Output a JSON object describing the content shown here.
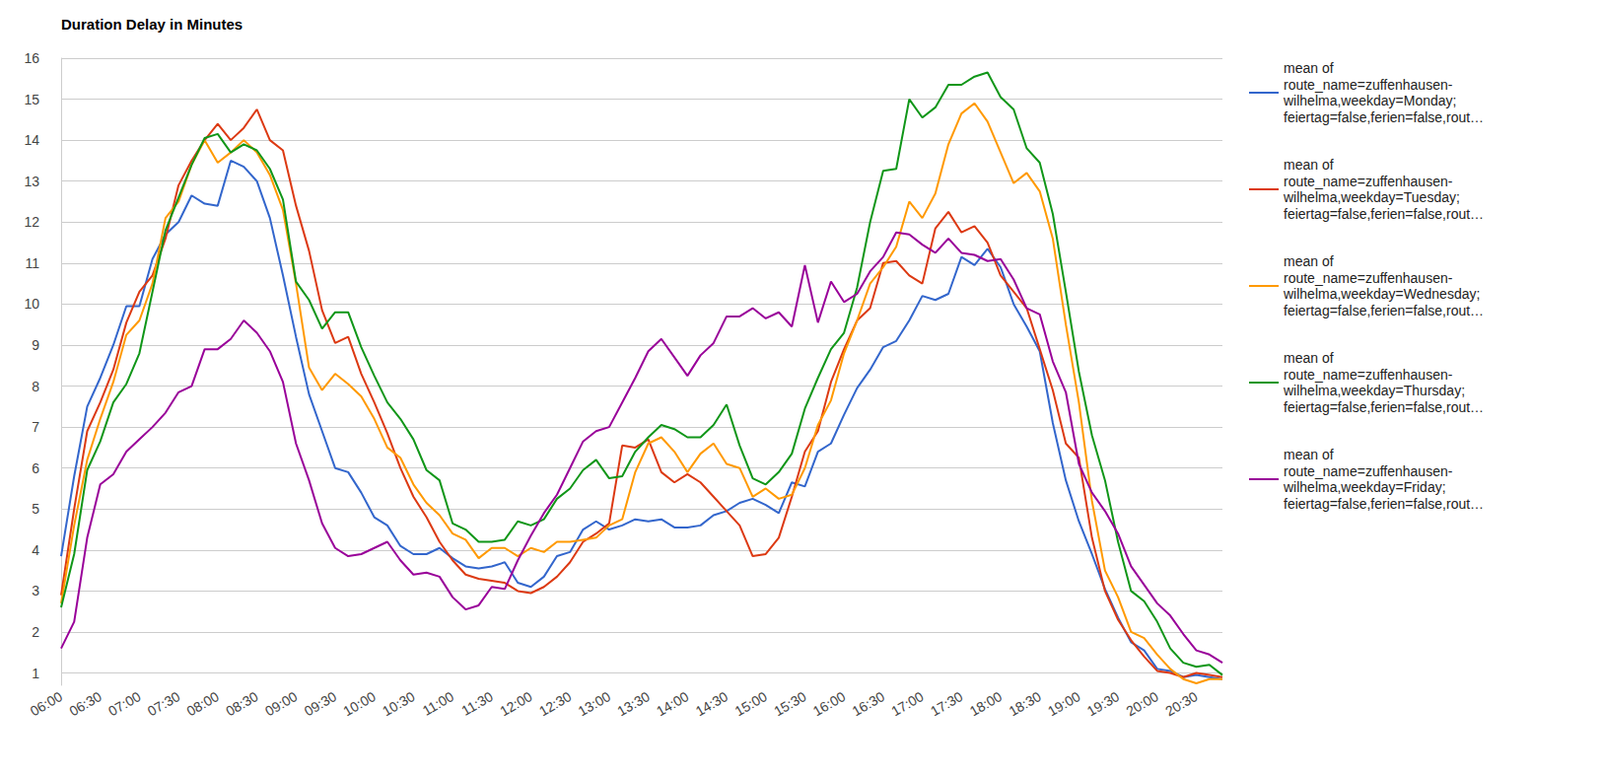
{
  "chart_data": {
    "type": "line",
    "title": "Duration Delay in Minutes",
    "categories": [
      "06:00",
      null,
      null,
      "06:30",
      null,
      null,
      "07:00",
      null,
      null,
      "07:30",
      null,
      null,
      "08:00",
      null,
      null,
      "08:30",
      null,
      null,
      "09:00",
      null,
      null,
      "09:30",
      null,
      null,
      "10:00",
      null,
      null,
      "10:30",
      null,
      null,
      "11:00",
      null,
      null,
      "11:30",
      null,
      null,
      "12:00",
      null,
      null,
      "12:30",
      null,
      null,
      "13:00",
      null,
      null,
      "13:30",
      null,
      null,
      "14:00",
      null,
      null,
      "14:30",
      null,
      null,
      "15:00",
      null,
      null,
      "15:30",
      null,
      null,
      "16:00",
      null,
      null,
      "16:30",
      null,
      null,
      "17:00",
      null,
      null,
      "17:30",
      null,
      null,
      "18:00",
      null,
      null,
      "18:30",
      null,
      null,
      "19:00",
      null,
      null,
      "19:30",
      null,
      null,
      "20:00",
      null,
      null,
      "20:30",
      null,
      null
    ],
    "series": [
      {
        "name": "mean of\nroute_name=zuffenhausen-\nwilhelma,weekday=Monday;\nfeiertag=false,ferien=false,rout…",
        "color": "#3366cc",
        "values": [
          3.85,
          5.8,
          7.5,
          8.2,
          9.0,
          9.95,
          9.95,
          11.1,
          11.7,
          12.0,
          12.65,
          12.45,
          12.4,
          13.5,
          13.35,
          13.0,
          12.1,
          10.7,
          9.2,
          7.8,
          6.9,
          6.0,
          5.9,
          5.4,
          4.8,
          4.6,
          4.1,
          3.9,
          3.9,
          4.05,
          3.8,
          3.6,
          3.55,
          3.6,
          3.7,
          3.2,
          3.1,
          3.35,
          3.85,
          3.95,
          4.5,
          4.7,
          4.5,
          4.6,
          4.75,
          4.7,
          4.75,
          4.55,
          4.55,
          4.6,
          4.85,
          4.95,
          5.15,
          5.25,
          5.1,
          4.9,
          5.65,
          5.55,
          6.4,
          6.6,
          7.3,
          7.95,
          8.4,
          8.95,
          9.1,
          9.6,
          10.2,
          10.1,
          10.25,
          11.15,
          10.95,
          11.35,
          10.9,
          10.0,
          9.45,
          8.85,
          7.1,
          5.7,
          4.7,
          3.9,
          3.05,
          2.35,
          1.75,
          1.55,
          1.1,
          1.05,
          0.9,
          0.95,
          0.9,
          0.85
        ]
      },
      {
        "name": "mean of\nroute_name=zuffenhausen-\nwilhelma,weekday=Tuesday;\nfeiertag=false,ferien=false,rout…",
        "color": "#dc3912",
        "values": [
          2.9,
          5.0,
          6.9,
          7.6,
          8.4,
          9.55,
          10.3,
          10.7,
          11.6,
          12.9,
          13.5,
          14.0,
          14.4,
          14.0,
          14.3,
          14.75,
          14.0,
          13.75,
          12.4,
          11.3,
          9.85,
          9.05,
          9.2,
          8.3,
          7.6,
          6.85,
          6.0,
          5.3,
          4.8,
          4.2,
          3.75,
          3.4,
          3.3,
          3.25,
          3.2,
          3.0,
          2.95,
          3.1,
          3.35,
          3.7,
          4.2,
          4.4,
          4.65,
          6.55,
          6.5,
          6.7,
          5.9,
          5.65,
          5.85,
          5.65,
          5.3,
          4.95,
          4.6,
          3.85,
          3.9,
          4.3,
          5.3,
          6.4,
          6.9,
          8.1,
          8.9,
          9.6,
          9.9,
          11.0,
          11.05,
          10.7,
          10.5,
          11.85,
          12.25,
          11.75,
          11.9,
          11.5,
          10.7,
          10.3,
          9.9,
          8.9,
          7.9,
          6.6,
          6.25,
          4.3,
          3.0,
          2.3,
          1.8,
          1.4,
          1.05,
          1.0,
          0.9,
          1.0,
          0.95,
          0.9
        ]
      },
      {
        "name": "mean of\nroute_name=zuffenhausen-\nwilhelma,weekday=Wednesday;\nfeiertag=false,ferien=false,rout…",
        "color": "#ff9900",
        "values": [
          2.7,
          4.6,
          6.2,
          7.2,
          8.1,
          9.25,
          9.6,
          10.5,
          12.1,
          12.5,
          13.4,
          14.0,
          13.45,
          13.7,
          14.0,
          13.7,
          13.15,
          12.3,
          10.5,
          8.45,
          7.9,
          8.3,
          8.05,
          7.75,
          7.2,
          6.5,
          6.25,
          5.6,
          5.15,
          4.85,
          4.4,
          4.25,
          3.8,
          4.05,
          4.05,
          3.85,
          4.05,
          3.95,
          4.2,
          4.2,
          4.25,
          4.3,
          4.6,
          4.75,
          5.9,
          6.6,
          6.75,
          6.4,
          5.9,
          6.35,
          6.6,
          6.1,
          6.0,
          5.3,
          5.5,
          5.25,
          5.35,
          6.0,
          7.05,
          7.65,
          8.8,
          9.6,
          10.5,
          10.9,
          11.4,
          12.5,
          12.1,
          12.7,
          13.9,
          14.65,
          14.9,
          14.45,
          13.7,
          12.95,
          13.2,
          12.75,
          11.6,
          9.5,
          7.6,
          5.2,
          3.5,
          2.85,
          2.0,
          1.85,
          1.45,
          1.1,
          0.85,
          0.75,
          0.85,
          0.85
        ]
      },
      {
        "name": "mean of\nroute_name=zuffenhausen-\nwilhelma,weekday=Thursday;\nfeiertag=false,ferien=false,rout…",
        "color": "#109618",
        "values": [
          2.6,
          3.9,
          5.95,
          6.65,
          7.6,
          8.05,
          8.8,
          10.3,
          11.8,
          12.6,
          13.4,
          14.05,
          14.15,
          13.7,
          13.9,
          13.75,
          13.3,
          12.55,
          10.55,
          10.1,
          9.4,
          9.8,
          9.8,
          8.95,
          8.25,
          7.6,
          7.2,
          6.7,
          5.95,
          5.7,
          4.65,
          4.5,
          4.2,
          4.2,
          4.25,
          4.7,
          4.6,
          4.75,
          5.25,
          5.5,
          5.95,
          6.2,
          5.75,
          5.8,
          6.4,
          6.75,
          7.05,
          6.95,
          6.75,
          6.75,
          7.05,
          7.55,
          6.55,
          5.75,
          5.6,
          5.9,
          6.35,
          7.45,
          8.2,
          8.9,
          9.3,
          10.4,
          12.0,
          13.25,
          13.3,
          15.0,
          14.55,
          14.8,
          15.35,
          15.35,
          15.55,
          15.65,
          15.05,
          14.75,
          13.8,
          13.45,
          12.2,
          10.3,
          8.35,
          6.8,
          5.7,
          4.2,
          3.0,
          2.75,
          2.25,
          1.6,
          1.25,
          1.15,
          1.2,
          0.95
        ]
      },
      {
        "name": "mean of\nroute_name=zuffenhausen-\nwilhelma,weekday=Friday;\nfeiertag=false,ferien=false,rout…",
        "color": "#990099",
        "values": [
          1.6,
          2.25,
          4.3,
          5.6,
          5.85,
          6.4,
          6.7,
          7.0,
          7.35,
          7.85,
          8.0,
          8.9,
          8.9,
          9.15,
          9.6,
          9.3,
          8.85,
          8.1,
          6.6,
          5.7,
          4.65,
          4.05,
          3.85,
          3.9,
          4.05,
          4.2,
          3.75,
          3.4,
          3.45,
          3.35,
          2.85,
          2.55,
          2.65,
          3.1,
          3.05,
          3.75,
          4.35,
          4.9,
          5.35,
          6.0,
          6.65,
          6.9,
          7.0,
          7.6,
          8.2,
          8.85,
          9.15,
          8.7,
          8.25,
          8.75,
          9.05,
          9.7,
          9.7,
          9.9,
          9.65,
          9.8,
          9.45,
          10.95,
          9.55,
          10.55,
          10.05,
          10.25,
          10.8,
          11.15,
          11.75,
          11.7,
          11.45,
          11.25,
          11.6,
          11.25,
          11.2,
          11.05,
          11.1,
          10.6,
          9.9,
          9.75,
          8.6,
          7.85,
          6.1,
          5.4,
          4.95,
          4.4,
          3.6,
          3.15,
          2.7,
          2.4,
          1.95,
          1.55,
          1.45,
          1.25
        ]
      }
    ],
    "ylim": [
      0.7,
      16
    ],
    "yticks": [
      1,
      2,
      3,
      4,
      5,
      6,
      7,
      8,
      9,
      10,
      11,
      12,
      13,
      14,
      15,
      16
    ],
    "grid": true,
    "legend": "right"
  }
}
